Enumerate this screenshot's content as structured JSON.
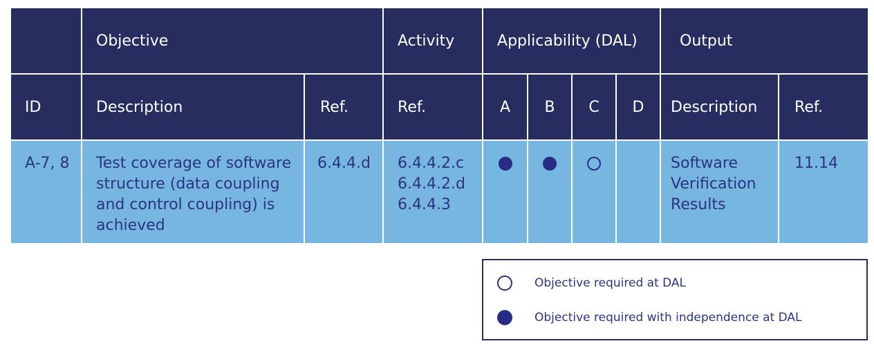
{
  "header_top": {
    "objective": "Objective",
    "activity": "Activity",
    "applicability": "Applicability (DAL)",
    "output": "Output"
  },
  "header_sub": {
    "id": "ID",
    "description": "Description",
    "ref": "Ref.",
    "activity_ref": "Ref.",
    "a": "A",
    "b": "B",
    "c": "C",
    "d": "D",
    "output_description": "Description",
    "output_ref": "Ref."
  },
  "row": {
    "id": "A-7, 8",
    "description": "Test coverage of software structure (data coupling and control coupling) is achieved",
    "ref": "6.4.4.d",
    "activity_refs": [
      "6.4.4.2.c",
      "6.4.4.2.d",
      "6.4.4.3"
    ],
    "dal": {
      "A": "filled",
      "B": "filled",
      "C": "open",
      "D": "none"
    },
    "output_description": "Software Verification Results",
    "output_ref": "11.14"
  },
  "legend": {
    "open_label": "Objective required at DAL",
    "filled_label": "Objective required with independence at DAL"
  },
  "colors": {
    "header_bg": "#272d5e",
    "body_bg": "#77b6e1",
    "text_dark": "#2b3481",
    "dot": "#272d85"
  }
}
